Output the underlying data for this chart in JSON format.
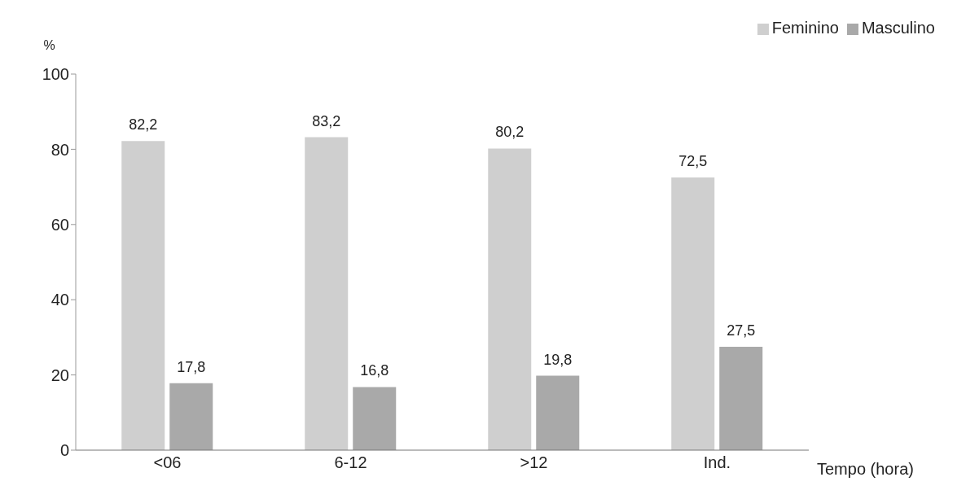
{
  "chart_data": {
    "type": "bar",
    "ylabel": "%",
    "xlabel": "Tempo (hora)",
    "categories": [
      "<06",
      "6-12",
      ">12",
      "Ind."
    ],
    "series": [
      {
        "name": "Feminino",
        "color": "#cfcfcf",
        "values": [
          82.2,
          83.2,
          80.2,
          72.5
        ],
        "value_labels": [
          "82,2",
          "83,2",
          "80,2",
          "72,5"
        ]
      },
      {
        "name": "Masculino",
        "color": "#a9a9a9",
        "values": [
          17.8,
          16.8,
          19.8,
          27.5
        ],
        "value_labels": [
          "17,8",
          "16,8",
          "19,8",
          "27,5"
        ]
      }
    ],
    "ylim": [
      0,
      100
    ],
    "yticks": [
      0,
      20,
      40,
      60,
      80,
      100
    ],
    "legend": "top right"
  }
}
